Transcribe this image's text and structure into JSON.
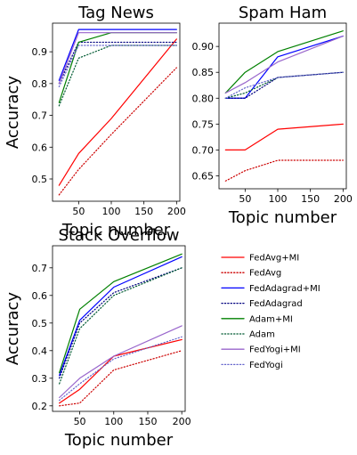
{
  "series_styles": {
    "FedAvg+MI": {
      "color": "#ff0000",
      "dash": "solid"
    },
    "FedAvg": {
      "color": "#cc0000",
      "dash": "dotted"
    },
    "FedAdagrad+MI": {
      "color": "#0000ff",
      "dash": "solid"
    },
    "FedAdagrad": {
      "color": "#00007f",
      "dash": "dotted"
    },
    "Adam+MI": {
      "color": "#008000",
      "dash": "solid"
    },
    "Adam": {
      "color": "#005a32",
      "dash": "dotted"
    },
    "FedYogi+MI": {
      "color": "#9966cc",
      "dash": "solid"
    },
    "FedYogi": {
      "color": "#6666cc",
      "dash": "dotted"
    }
  },
  "legend": {
    "placement": "lower-right",
    "entries": [
      "FedAvg+MI",
      "FedAvg",
      "FedAdagrad+MI",
      "FedAdagrad",
      "Adam+MI",
      "Adam",
      "FedYogi+MI",
      "FedYogi"
    ]
  },
  "chart_data": [
    {
      "type": "line",
      "title": "Tag News",
      "xlabel": "Topic number",
      "ylabel": "Accuracy",
      "x": [
        20,
        50,
        100,
        200
      ],
      "xlim": [
        10,
        205
      ],
      "ylim": [
        0.43,
        0.99
      ],
      "xticks": [
        50,
        100,
        150,
        200
      ],
      "yticks": [
        0.5,
        0.6,
        0.7,
        0.8,
        0.9
      ],
      "xtick_labels": [
        "50",
        "100",
        "150",
        "200"
      ],
      "ytick_labels": [
        "0.5",
        "0.6",
        "0.7",
        "0.8",
        "0.9"
      ],
      "grid": false,
      "series": [
        {
          "name": "FedAvg+MI",
          "values": [
            0.48,
            0.58,
            0.69,
            0.94
          ]
        },
        {
          "name": "FedAvg",
          "values": [
            0.45,
            0.53,
            0.64,
            0.85
          ]
        },
        {
          "name": "FedAdagrad+MI",
          "values": [
            0.81,
            0.97,
            0.97,
            0.97
          ]
        },
        {
          "name": "FedAdagrad",
          "values": [
            0.8,
            0.93,
            0.93,
            0.93
          ]
        },
        {
          "name": "Adam+MI",
          "values": [
            0.74,
            0.93,
            0.96,
            0.96
          ]
        },
        {
          "name": "Adam",
          "values": [
            0.73,
            0.88,
            0.92,
            0.92
          ]
        },
        {
          "name": "FedYogi+MI",
          "values": [
            0.8,
            0.96,
            0.96,
            0.96
          ]
        },
        {
          "name": "FedYogi",
          "values": [
            0.79,
            0.92,
            0.92,
            0.92
          ]
        }
      ]
    },
    {
      "type": "line",
      "title": "Spam Ham",
      "xlabel": "Topic number",
      "ylabel": "",
      "x": [
        20,
        50,
        100,
        200
      ],
      "xlim": [
        10,
        205
      ],
      "ylim": [
        0.625,
        0.945
      ],
      "xticks": [
        50,
        100,
        150,
        200
      ],
      "yticks": [
        0.65,
        0.7,
        0.75,
        0.8,
        0.85,
        0.9
      ],
      "xtick_labels": [
        "50",
        "100",
        "150",
        "200"
      ],
      "ytick_labels": [
        "0.65",
        "0.70",
        "0.75",
        "0.80",
        "0.85",
        "0.90"
      ],
      "grid": false,
      "series": [
        {
          "name": "FedAvg+MI",
          "values": [
            0.7,
            0.7,
            0.74,
            0.75
          ]
        },
        {
          "name": "FedAvg",
          "values": [
            0.64,
            0.66,
            0.68,
            0.68
          ]
        },
        {
          "name": "FedAdagrad+MI",
          "values": [
            0.8,
            0.8,
            0.88,
            0.92
          ]
        },
        {
          "name": "FedAdagrad",
          "values": [
            0.8,
            0.8,
            0.84,
            0.85
          ]
        },
        {
          "name": "Adam+MI",
          "values": [
            0.81,
            0.85,
            0.89,
            0.93
          ]
        },
        {
          "name": "Adam",
          "values": [
            0.8,
            0.81,
            0.84,
            0.85
          ]
        },
        {
          "name": "FedYogi+MI",
          "values": [
            0.81,
            0.83,
            0.87,
            0.92
          ]
        },
        {
          "name": "FedYogi",
          "values": [
            0.8,
            0.82,
            0.84,
            0.85
          ]
        }
      ]
    },
    {
      "type": "line",
      "title": "Stack Overflow",
      "xlabel": "Topic number",
      "ylabel": "Accuracy",
      "x": [
        20,
        50,
        100,
        200
      ],
      "xlim": [
        10,
        205
      ],
      "ylim": [
        0.18,
        0.78
      ],
      "xticks": [
        50,
        100,
        150,
        200
      ],
      "yticks": [
        0.2,
        0.3,
        0.4,
        0.5,
        0.6,
        0.7
      ],
      "xtick_labels": [
        "50",
        "100",
        "150",
        "200"
      ],
      "ytick_labels": [
        "0.2",
        "0.3",
        "0.4",
        "0.5",
        "0.6",
        "0.7"
      ],
      "grid": false,
      "series": [
        {
          "name": "FedAvg+MI",
          "values": [
            0.21,
            0.26,
            0.38,
            0.44
          ]
        },
        {
          "name": "FedAvg",
          "values": [
            0.2,
            0.21,
            0.33,
            0.4
          ]
        },
        {
          "name": "FedAdagrad+MI",
          "values": [
            0.31,
            0.51,
            0.63,
            0.74
          ]
        },
        {
          "name": "FedAdagrad",
          "values": [
            0.3,
            0.5,
            0.61,
            0.7
          ]
        },
        {
          "name": "Adam+MI",
          "values": [
            0.32,
            0.55,
            0.65,
            0.75
          ]
        },
        {
          "name": "Adam",
          "values": [
            0.28,
            0.48,
            0.6,
            0.7
          ]
        },
        {
          "name": "FedYogi+MI",
          "values": [
            0.23,
            0.3,
            0.38,
            0.49
          ]
        },
        {
          "name": "FedYogi",
          "values": [
            0.22,
            0.28,
            0.37,
            0.45
          ]
        }
      ]
    }
  ]
}
